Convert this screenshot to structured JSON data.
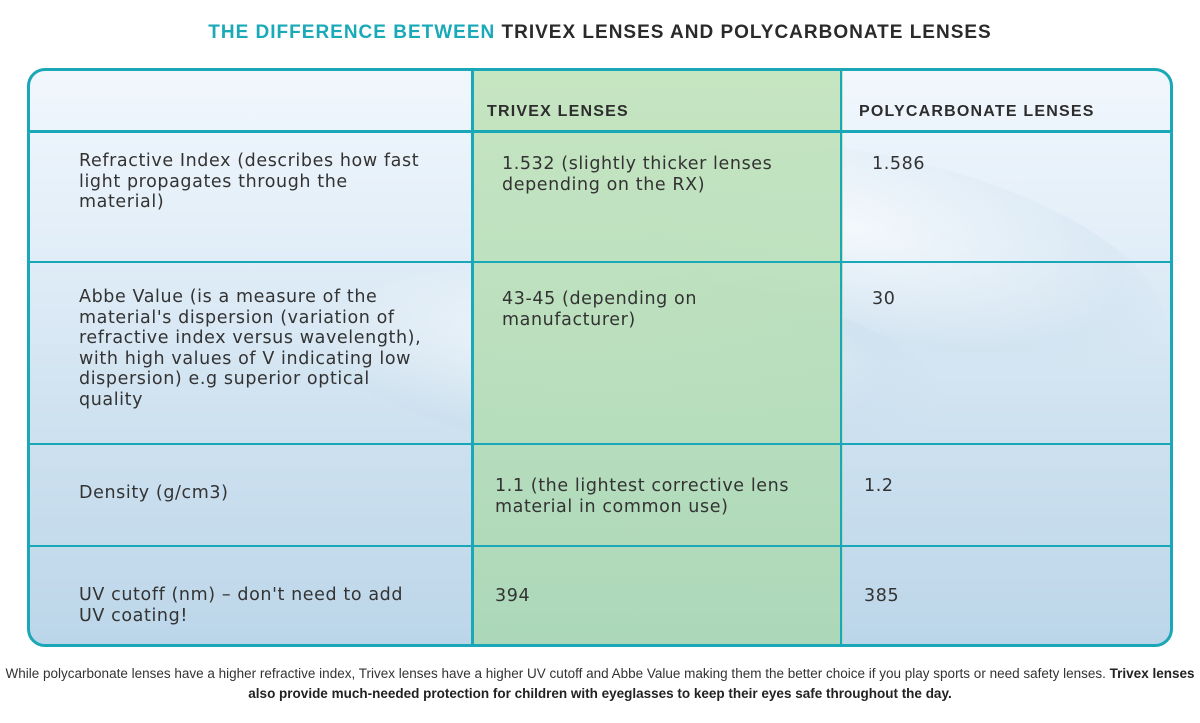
{
  "title": {
    "accent": "THE DIFFERENCE BETWEEN",
    "rest": "TRIVEX LENSES AND POLYCARBONATE LENSES"
  },
  "colors": {
    "accent": "#1aa8b8",
    "trivex_column": "#c4e4be"
  },
  "table": {
    "headers": [
      "",
      "TRIVEX LENSES",
      "POLYCARBONATE LENSES"
    ],
    "rows": [
      {
        "property": "Refractive Index (describes how fast light propagates through the material)",
        "trivex": "1.532 (slightly thicker lenses depending on the RX)",
        "polycarbonate": "1.586"
      },
      {
        "property": "Abbe Value (is a measure of the material's dispersion (variation of refractive index versus wavelength), with high values of V indicating low dispersion) e.g superior optical quality",
        "trivex": "43-45 (depending on manufacturer)",
        "polycarbonate": "30"
      },
      {
        "property": "Density  (g/cm3)",
        "trivex": "1.1 (the lightest corrective lens material in common use)",
        "polycarbonate": "1.2"
      },
      {
        "property": "UV cutoff  (nm) – don't need to add UV coating!",
        "trivex": "394",
        "polycarbonate": "385"
      }
    ]
  },
  "footer": {
    "normal": "While polycarbonate lenses have a higher refractive index, Trivex lenses have a higher UV cutoff and Abbe Value making them the better choice if you play sports or need safety lenses.",
    "bold": "Trivex lenses also provide much-needed protection for children with eyeglasses to keep their eyes safe throughout the day."
  }
}
